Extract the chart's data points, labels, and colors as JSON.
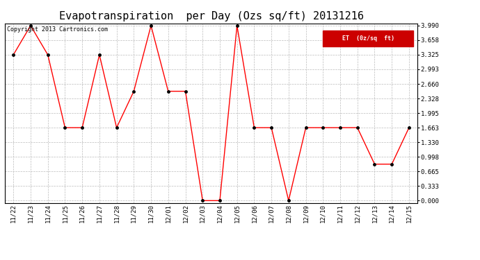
{
  "title": "Evapotranspiration  per Day (Ozs sq/ft) 20131216",
  "copyright": "Copyright 2013 Cartronics.com",
  "legend_label": "ET  (0z/sq  ft)",
  "dates": [
    "11/22",
    "11/23",
    "11/24",
    "11/25",
    "11/26",
    "11/27",
    "11/28",
    "11/29",
    "11/30",
    "12/01",
    "12/02",
    "12/03",
    "12/04",
    "12/05",
    "12/06",
    "12/07",
    "12/08",
    "12/09",
    "12/10",
    "12/11",
    "12/12",
    "12/13",
    "12/14",
    "12/15"
  ],
  "values": [
    3.325,
    3.99,
    3.325,
    1.663,
    1.663,
    3.325,
    1.663,
    2.493,
    3.99,
    2.493,
    2.493,
    0.0,
    0.0,
    3.99,
    1.663,
    1.663,
    0.0,
    1.663,
    1.663,
    1.663,
    1.663,
    0.831,
    0.831,
    1.663
  ],
  "line_color": "red",
  "marker_color": "black",
  "background_color": "#ffffff",
  "grid_color": "#bbbbbb",
  "yticks": [
    0.0,
    0.333,
    0.665,
    0.998,
    1.33,
    1.663,
    1.995,
    2.328,
    2.66,
    2.993,
    3.325,
    3.658,
    3.99
  ],
  "ylim": [
    0.0,
    3.99
  ],
  "title_fontsize": 11,
  "copyright_fontsize": 6,
  "legend_bg": "#cc0000",
  "legend_text_color": "#ffffff",
  "tick_fontsize": 6.5,
  "marker_size": 2.5,
  "line_width": 1.0
}
